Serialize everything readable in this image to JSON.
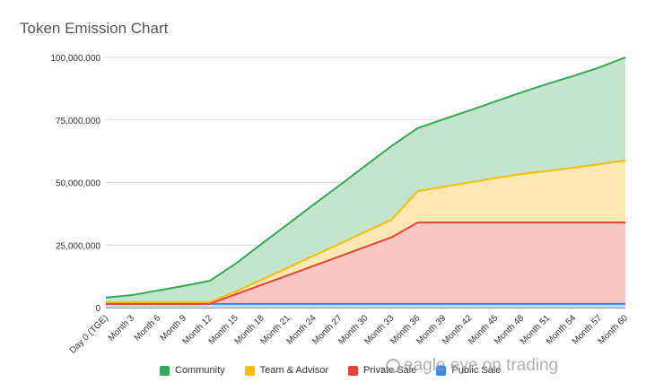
{
  "chart_data": {
    "type": "area",
    "stacked": true,
    "title": "Token Emission Chart",
    "xlabel": "",
    "ylabel": "",
    "ylim": [
      0,
      100000000
    ],
    "y_ticks": [
      "0",
      "25,000,000",
      "50,000,000",
      "75,000,000",
      "100,000,000"
    ],
    "categories": [
      "Day 0 (TGE)",
      "Month 3",
      "Month 6",
      "Month 9",
      "Month 12",
      "Month 15",
      "Month 18",
      "Month 21",
      "Month 24",
      "Month 27",
      "Month 30",
      "Month 33",
      "Month 36",
      "Month 39",
      "Month 42",
      "Month 45",
      "Month 48",
      "Month 51",
      "Month 54",
      "Month 57",
      "Month 60"
    ],
    "grid": true,
    "legend_position": "bottom",
    "series": [
      {
        "name": "Public Sale",
        "color": "#4285f4",
        "fill": "#c6d9fc",
        "values": [
          1500000,
          1500000,
          1500000,
          1500000,
          1500000,
          1500000,
          1500000,
          1500000,
          1500000,
          1500000,
          1500000,
          1500000,
          1500000,
          1500000,
          1500000,
          1500000,
          1500000,
          1500000,
          1500000,
          1500000,
          1500000
        ]
      },
      {
        "name": "Private Sale",
        "color": "#ea4335",
        "fill": "#f8c7c3",
        "values": [
          0,
          0,
          0,
          0,
          0,
          3800000,
          7600000,
          11400000,
          15200000,
          19000000,
          22800000,
          26600000,
          32500000,
          32500000,
          32500000,
          32500000,
          32500000,
          32500000,
          32500000,
          32500000,
          32500000
        ]
      },
      {
        "name": "Team & Advisor",
        "color": "#fbbc04",
        "fill": "#fde8b3",
        "values": [
          700000,
          700000,
          700000,
          700000,
          700000,
          1100000,
          2100000,
          3000000,
          4100000,
          5000000,
          6100000,
          7100000,
          12500000,
          14300000,
          16000000,
          17800000,
          19400000,
          20600000,
          21900000,
          23300000,
          24800000
        ]
      },
      {
        "name": "Community",
        "color": "#34a853",
        "fill": "#c3e5cb",
        "values": [
          1800000,
          2800000,
          4600000,
          6500000,
          8500000,
          11200000,
          14300000,
          17400000,
          20400000,
          23400000,
          26400000,
          29400000,
          25200000,
          27000000,
          28800000,
          30600000,
          32600000,
          34800000,
          36700000,
          38700000,
          41200000
        ]
      }
    ],
    "legend_order": [
      "Community",
      "Team & Advisor",
      "Private Sale",
      "Public Sale"
    ]
  },
  "watermark": {
    "text": "eagle eye on trading"
  }
}
